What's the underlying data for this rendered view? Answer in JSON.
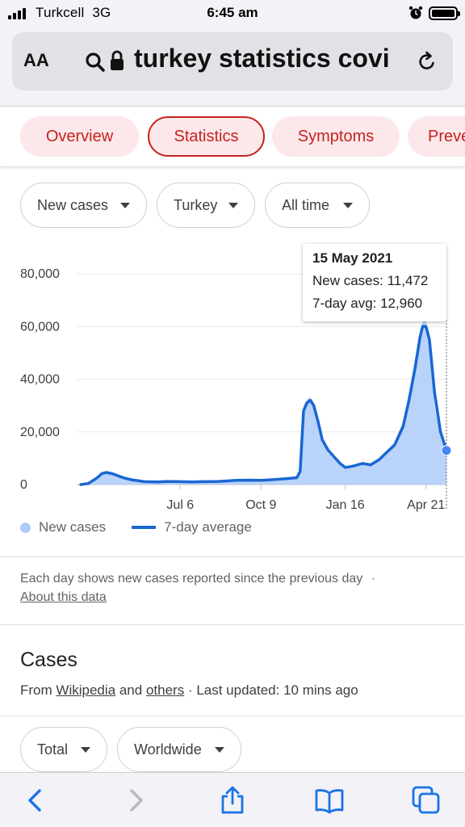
{
  "status_bar": {
    "carrier": "Turkcell",
    "network": "3G",
    "time": "6:45 am"
  },
  "browser": {
    "text_size_label": "AA",
    "url": "turkey statistics covi"
  },
  "tabs": [
    {
      "label": "Overview",
      "active": false
    },
    {
      "label": "Statistics",
      "active": true
    },
    {
      "label": "Symptoms",
      "active": false
    },
    {
      "label": "Preve",
      "active": false
    }
  ],
  "filters": [
    {
      "label": "New cases"
    },
    {
      "label": "Turkey"
    },
    {
      "label": "All time"
    }
  ],
  "chart_data": {
    "type": "area",
    "title": "",
    "ylabel": "",
    "ylim": [
      0,
      80000
    ],
    "yticks": [
      "0",
      "20,000",
      "40,000",
      "60,000",
      "80,000"
    ],
    "xticks": [
      "Jul 6",
      "Oct 9",
      "Jan 16",
      "Apr 21"
    ],
    "grid": true,
    "series": [
      {
        "name": "New cases",
        "color": "#aecbfa",
        "style": "area"
      },
      {
        "name": "7-day average",
        "color": "#1967d2",
        "style": "line"
      }
    ],
    "x_dates": [
      "2020-03-11",
      "2020-03-20",
      "2020-03-30",
      "2020-04-05",
      "2020-04-10",
      "2020-04-15",
      "2020-04-20",
      "2020-04-30",
      "2020-05-10",
      "2020-05-25",
      "2020-06-10",
      "2020-06-20",
      "2020-07-06",
      "2020-07-20",
      "2020-08-01",
      "2020-08-20",
      "2020-09-10",
      "2020-09-25",
      "2020-10-09",
      "2020-10-25",
      "2020-11-10",
      "2020-11-20",
      "2020-11-24",
      "2020-11-28",
      "2020-12-02",
      "2020-12-06",
      "2020-12-10",
      "2020-12-15",
      "2020-12-20",
      "2020-12-27",
      "2021-01-03",
      "2021-01-10",
      "2021-01-16",
      "2021-01-25",
      "2021-02-05",
      "2021-02-15",
      "2021-02-25",
      "2021-03-05",
      "2021-03-15",
      "2021-03-25",
      "2021-04-01",
      "2021-04-08",
      "2021-04-14",
      "2021-04-17",
      "2021-04-21",
      "2021-04-25",
      "2021-05-01",
      "2021-05-08",
      "2021-05-15"
    ],
    "seven_day_avg": [
      0,
      400,
      2500,
      4200,
      4600,
      4300,
      3800,
      2600,
      1800,
      1100,
      1000,
      1200,
      1100,
      1000,
      1100,
      1200,
      1600,
      1700,
      1600,
      1900,
      2300,
      2600,
      5000,
      28000,
      31000,
      32000,
      30000,
      24000,
      17000,
      13000,
      10500,
      8000,
      6500,
      7000,
      8000,
      7500,
      9500,
      12000,
      15000,
      22000,
      32000,
      44000,
      56000,
      60000,
      60000,
      55000,
      35000,
      20000,
      12960
    ],
    "new_cases": [
      0,
      600,
      2800,
      4300,
      4900,
      4500,
      3600,
      2400,
      1700,
      1000,
      1100,
      1300,
      1000,
      900,
      1200,
      1300,
      1700,
      1600,
      1700,
      2000,
      2300,
      2700,
      6000,
      30000,
      32500,
      33000,
      31000,
      22000,
      16000,
      12000,
      10000,
      7500,
      6200,
      7300,
      8200,
      7300,
      9800,
      12500,
      16000,
      24000,
      35000,
      47000,
      58000,
      62000,
      63000,
      52000,
      30000,
      18000,
      11472
    ],
    "tooltip": {
      "date": "15 May 2021",
      "new_cases": "New cases: 11,472",
      "seven_day_avg": "7-day avg: 12,960"
    }
  },
  "legend": {
    "new_cases": "New cases",
    "seven_day_avg": "7-day average"
  },
  "note": {
    "text": "Each day shows new cases reported since the previous day",
    "separator": "·",
    "link": "About this data"
  },
  "cases": {
    "title": "Cases",
    "from_label": "From",
    "source1": "Wikipedia",
    "and_label": "and",
    "source2": "others",
    "updated": "· Last updated: 10 mins ago"
  },
  "filters2": [
    {
      "label": "Total"
    },
    {
      "label": "Worldwide"
    }
  ]
}
